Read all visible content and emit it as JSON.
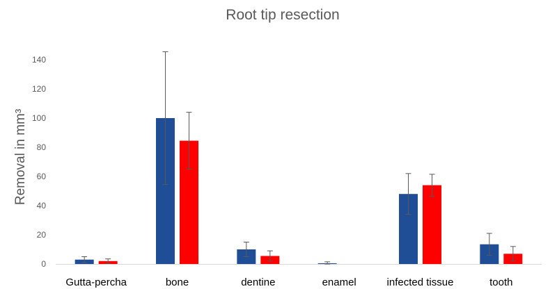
{
  "chart_data": {
    "type": "bar",
    "title": "Root tip resection",
    "xlabel": "",
    "ylabel": "Removal in mm³",
    "ylim": [
      0,
      150
    ],
    "yticks": [
      0,
      20,
      40,
      60,
      80,
      100,
      120,
      140
    ],
    "grid": false,
    "legend": "none",
    "categories": [
      "Gutta-percha",
      "bone",
      "dentine",
      "enamel",
      "infected tissue",
      "tooth"
    ],
    "series": [
      {
        "color": "#1f4e96",
        "values": [
          3,
          100,
          10,
          0.5,
          48,
          13.5
        ],
        "error": [
          2,
          45.5,
          5,
          1,
          14,
          7.5
        ]
      },
      {
        "color": "#ff0000",
        "values": [
          2,
          84.5,
          5.5,
          0,
          54,
          7
        ],
        "error": [
          1.5,
          19.5,
          3.5,
          0,
          7.5,
          5
        ]
      }
    ]
  }
}
